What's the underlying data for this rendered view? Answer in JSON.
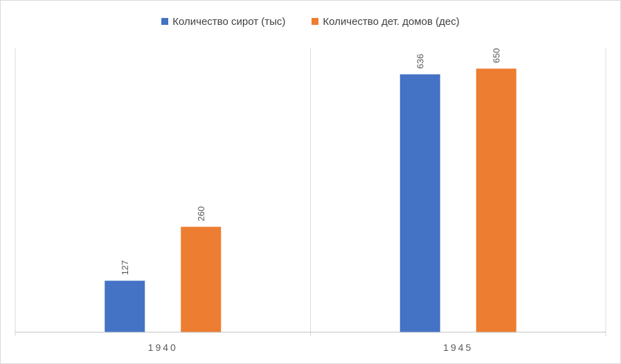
{
  "chart_data": {
    "type": "bar",
    "categories": [
      "1940",
      "1945"
    ],
    "series": [
      {
        "name": "Количество сирот (тыс)",
        "values": [
          127,
          636
        ],
        "color": "#4472c4"
      },
      {
        "name": "Количество дет. домов (дес)",
        "values": [
          260,
          650
        ],
        "color": "#ed7d31"
      }
    ],
    "ylim": [
      0,
      700
    ],
    "grid": false,
    "legend_position": "top",
    "data_labels": true,
    "axis_line_color": "#bfbfbf"
  }
}
